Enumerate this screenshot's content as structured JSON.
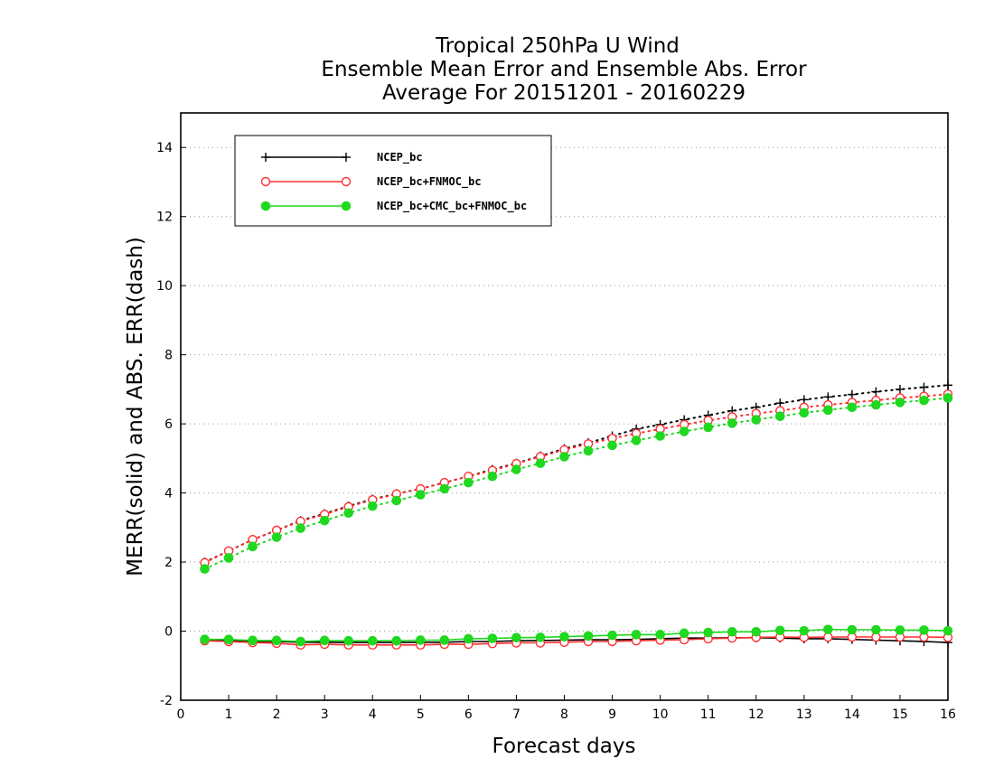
{
  "chart_data": {
    "type": "line",
    "title": [
      "Tropical 250hPa U Wind",
      "Ensemble Mean Error and Ensemble Abs. Error",
      "Average For 20151201 - 20160229"
    ],
    "xlabel": "Forecast days",
    "ylabel": "MERR(solid) and ABS. ERR(dash)",
    "xlim": [
      0,
      16
    ],
    "ylim": [
      -2,
      15
    ],
    "xticks": [
      "0",
      "1",
      "2",
      "3",
      "4",
      "5",
      "6",
      "7",
      "8",
      "9",
      "10",
      "11",
      "12",
      "13",
      "14",
      "15",
      "16"
    ],
    "yticks": [
      "-2",
      "0",
      "2",
      "4",
      "6",
      "8",
      "10",
      "12",
      "14"
    ],
    "grid": "horizontal dotted",
    "legend_position": "top-left",
    "x": [
      0.5,
      1,
      1.5,
      2,
      2.5,
      3,
      3.5,
      4,
      4.5,
      5,
      5.5,
      6,
      6.5,
      7,
      7.5,
      8,
      8.5,
      9,
      9.5,
      10,
      10.5,
      11,
      11.5,
      12,
      12.5,
      13,
      13.5,
      14,
      14.5,
      15,
      15.5,
      16
    ],
    "series": [
      {
        "name": "NCEP_bc",
        "color": "#000000",
        "marker": "plus",
        "merr": [
          -0.25,
          -0.27,
          -0.3,
          -0.3,
          -0.32,
          -0.32,
          -0.33,
          -0.33,
          -0.33,
          -0.32,
          -0.32,
          -0.3,
          -0.3,
          -0.28,
          -0.27,
          -0.26,
          -0.25,
          -0.25,
          -0.24,
          -0.22,
          -0.2,
          -0.2,
          -0.19,
          -0.19,
          -0.2,
          -0.22,
          -0.22,
          -0.24,
          -0.26,
          -0.28,
          -0.3,
          -0.33
        ],
        "abs_err": [
          2.0,
          2.32,
          2.65,
          2.92,
          3.2,
          3.4,
          3.62,
          3.82,
          3.98,
          4.12,
          4.3,
          4.48,
          4.68,
          4.86,
          5.07,
          5.28,
          5.45,
          5.65,
          5.85,
          5.98,
          6.12,
          6.25,
          6.38,
          6.48,
          6.6,
          6.7,
          6.78,
          6.85,
          6.93,
          7.0,
          7.06,
          7.12
        ]
      },
      {
        "name": "NCEP_bc+FNMOC_bc",
        "color": "#ff3030",
        "marker": "open-circle",
        "merr": [
          -0.28,
          -0.3,
          -0.33,
          -0.35,
          -0.4,
          -0.38,
          -0.4,
          -0.4,
          -0.4,
          -0.4,
          -0.38,
          -0.38,
          -0.36,
          -0.34,
          -0.34,
          -0.32,
          -0.3,
          -0.3,
          -0.28,
          -0.26,
          -0.25,
          -0.22,
          -0.2,
          -0.18,
          -0.17,
          -0.18,
          -0.17,
          -0.17,
          -0.17,
          -0.17,
          -0.17,
          -0.18
        ],
        "abs_err": [
          1.98,
          2.32,
          2.65,
          2.92,
          3.18,
          3.38,
          3.6,
          3.8,
          3.97,
          4.12,
          4.3,
          4.48,
          4.65,
          4.85,
          5.05,
          5.25,
          5.42,
          5.58,
          5.72,
          5.85,
          5.98,
          6.1,
          6.2,
          6.3,
          6.38,
          6.48,
          6.55,
          6.62,
          6.68,
          6.75,
          6.8,
          6.86
        ]
      },
      {
        "name": "NCEP_bc+CMC_bc+FNMOC_bc",
        "color": "#1fd81f",
        "marker": "filled-circle",
        "merr": [
          -0.24,
          -0.24,
          -0.27,
          -0.27,
          -0.3,
          -0.27,
          -0.28,
          -0.28,
          -0.28,
          -0.26,
          -0.26,
          -0.22,
          -0.21,
          -0.19,
          -0.18,
          -0.16,
          -0.14,
          -0.12,
          -0.1,
          -0.1,
          -0.06,
          -0.04,
          -0.02,
          -0.02,
          0.02,
          0.01,
          0.05,
          0.04,
          0.04,
          0.03,
          0.03,
          0.01
        ],
        "abs_err": [
          1.8,
          2.12,
          2.45,
          2.72,
          2.98,
          3.2,
          3.42,
          3.62,
          3.78,
          3.95,
          4.12,
          4.3,
          4.48,
          4.68,
          4.86,
          5.05,
          5.22,
          5.38,
          5.52,
          5.65,
          5.78,
          5.9,
          6.02,
          6.12,
          6.22,
          6.32,
          6.4,
          6.48,
          6.55,
          6.62,
          6.68,
          6.75
        ]
      }
    ]
  }
}
